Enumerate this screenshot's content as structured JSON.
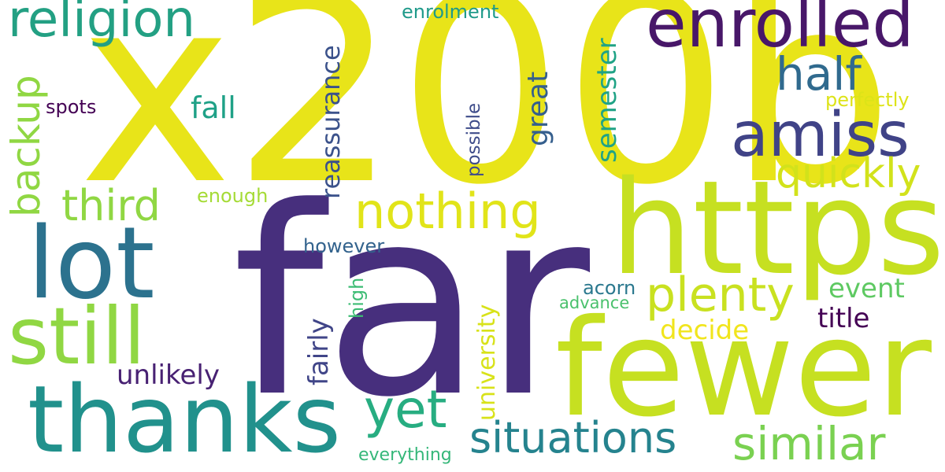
{
  "words": [
    {
      "text": "x200b",
      "color": "#e8e419"
    },
    {
      "text": "far",
      "color": "#472f7d"
    },
    {
      "text": "https",
      "color": "#c6e021"
    },
    {
      "text": "fewer",
      "color": "#c6e021"
    },
    {
      "text": "thanks",
      "color": "#21918c"
    },
    {
      "text": "lot",
      "color": "#2c728e"
    },
    {
      "text": "still",
      "color": "#90d743"
    },
    {
      "text": "enrolled",
      "color": "#481769"
    },
    {
      "text": "religion",
      "color": "#23a083"
    },
    {
      "text": "nothing",
      "color": "#e1e419"
    },
    {
      "text": "amiss",
      "color": "#404387"
    },
    {
      "text": "plenty",
      "color": "#c9e120"
    },
    {
      "text": "yet",
      "color": "#27ad81"
    },
    {
      "text": "situations",
      "color": "#25838e"
    },
    {
      "text": "similar",
      "color": "#7ad151"
    },
    {
      "text": "third",
      "color": "#90d743"
    },
    {
      "text": "half",
      "color": "#306a8e"
    },
    {
      "text": "quickly",
      "color": "#d2e21b"
    },
    {
      "text": "backup",
      "color": "#90d743"
    },
    {
      "text": "reassurance",
      "color": "#3b528b"
    },
    {
      "text": "great",
      "color": "#355f8d"
    },
    {
      "text": "semester",
      "color": "#20a386"
    },
    {
      "text": "university",
      "color": "#d8e219"
    },
    {
      "text": "fairly",
      "color": "#404588"
    },
    {
      "text": "unlikely",
      "color": "#482173"
    },
    {
      "text": "title",
      "color": "#440154"
    },
    {
      "text": "event",
      "color": "#5ec962"
    },
    {
      "text": "decide",
      "color": "#f1e51d"
    },
    {
      "text": "fall",
      "color": "#1fa187"
    },
    {
      "text": "spots",
      "color": "#440154"
    },
    {
      "text": "enrolment",
      "color": "#1f9a8a"
    },
    {
      "text": "perfectly",
      "color": "#dde318"
    },
    {
      "text": "possible",
      "color": "#3e4c8a"
    },
    {
      "text": "enough",
      "color": "#a5db36"
    },
    {
      "text": "however",
      "color": "#33638d"
    },
    {
      "text": "acorn",
      "color": "#2a788e"
    },
    {
      "text": "advance",
      "color": "#4ac16d"
    },
    {
      "text": "high",
      "color": "#3dbc74"
    },
    {
      "text": "everything",
      "color": "#35b779"
    }
  ]
}
